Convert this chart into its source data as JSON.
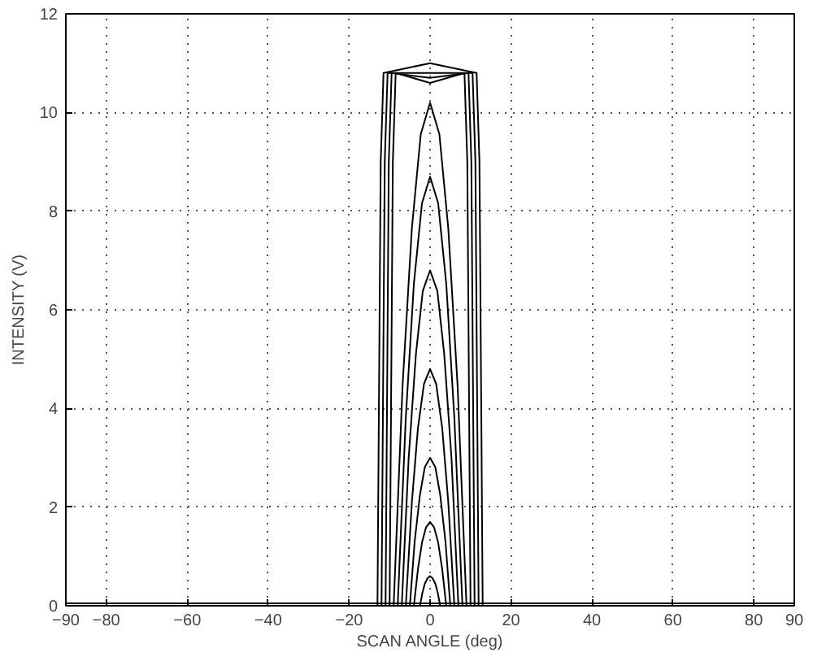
{
  "chart_data": {
    "type": "line",
    "xlabel": "SCAN ANGLE (deg)",
    "ylabel": "INTENSITY (V)",
    "xlim": [
      -90,
      90
    ],
    "ylim": [
      0,
      12
    ],
    "xticks": [
      {
        "value": -90,
        "label": "−90"
      },
      {
        "value": -80,
        "label": "−80"
      },
      {
        "value": -60,
        "label": "−60"
      },
      {
        "value": -40,
        "label": "−40"
      },
      {
        "value": -20,
        "label": "−20"
      },
      0,
      20,
      40,
      60,
      80,
      90
    ],
    "yticks": [
      0,
      2,
      4,
      6,
      8,
      10,
      12
    ],
    "grid": true,
    "line_style": "solid",
    "series": [
      {
        "color": "#000000",
        "x": [
          -90,
          -45,
          0,
          45,
          90
        ],
        "values": [
          0.05,
          0.05,
          0.05,
          0.05,
          0.05
        ]
      },
      {
        "color": "#000000",
        "x": [
          -2.5,
          -1.9,
          -1.3,
          -0.6,
          0,
          0.6,
          1.3,
          1.9,
          2.5
        ],
        "values": [
          0,
          0.26,
          0.45,
          0.56,
          0.6,
          0.56,
          0.45,
          0.26,
          0
        ]
      },
      {
        "color": "#000000",
        "x": [
          -4,
          -3,
          -2,
          -1,
          0,
          1,
          2,
          3,
          4
        ],
        "values": [
          0,
          0.74,
          1.28,
          1.59,
          1.7,
          1.59,
          1.28,
          0.74,
          0
        ]
      },
      {
        "color": "#000000",
        "x": [
          -5,
          -3.8,
          -2.5,
          -1.3,
          0,
          1.3,
          2.5,
          3.8,
          5
        ],
        "values": [
          0,
          1.31,
          2.25,
          2.81,
          3.0,
          2.81,
          2.25,
          1.31,
          0
        ]
      },
      {
        "color": "#000000",
        "x": [
          -6,
          -4.5,
          -3,
          -1.5,
          0,
          1.5,
          3,
          4.5,
          6
        ],
        "values": [
          0,
          2.1,
          3.6,
          4.5,
          4.8,
          4.5,
          3.6,
          2.1,
          0
        ]
      },
      {
        "color": "#000000",
        "x": [
          -7,
          -5.3,
          -3.5,
          -1.8,
          0,
          1.8,
          3.5,
          5.3,
          7
        ],
        "values": [
          0,
          2.98,
          5.1,
          6.38,
          6.8,
          6.38,
          5.1,
          2.98,
          0
        ]
      },
      {
        "color": "#000000",
        "x": [
          -8,
          -6,
          -4,
          -2,
          0,
          2,
          4,
          6,
          8
        ],
        "values": [
          0,
          3.81,
          6.53,
          8.16,
          8.7,
          8.16,
          6.53,
          3.81,
          0
        ]
      },
      {
        "color": "#000000",
        "x": [
          -9,
          -6.8,
          -4.5,
          -2.3,
          0,
          2.3,
          4.5,
          6.8,
          9
        ],
        "values": [
          0,
          4.46,
          7.65,
          9.56,
          10.2,
          9.56,
          7.65,
          4.46,
          0
        ]
      },
      {
        "color": "#000000",
        "x": [
          -10,
          -9.2,
          -8.5,
          0,
          8.5,
          9.2,
          10
        ],
        "values": [
          0,
          9,
          10.8,
          10.6,
          10.8,
          9,
          0
        ]
      },
      {
        "color": "#000000",
        "x": [
          -11,
          -10.2,
          -9.5,
          0,
          9.5,
          10.2,
          11
        ],
        "values": [
          0,
          9,
          10.8,
          10.7,
          10.8,
          9,
          0
        ]
      },
      {
        "color": "#000000",
        "x": [
          -12,
          -11.2,
          -10.5,
          0,
          10.5,
          11.2,
          12
        ],
        "values": [
          0,
          9,
          10.8,
          10.8,
          10.8,
          9,
          0
        ]
      },
      {
        "color": "#000000",
        "x": [
          -13,
          -12.2,
          -11.5,
          0,
          11.5,
          12.2,
          13
        ],
        "values": [
          0,
          9,
          10.8,
          11.0,
          10.8,
          9,
          0
        ]
      }
    ]
  }
}
